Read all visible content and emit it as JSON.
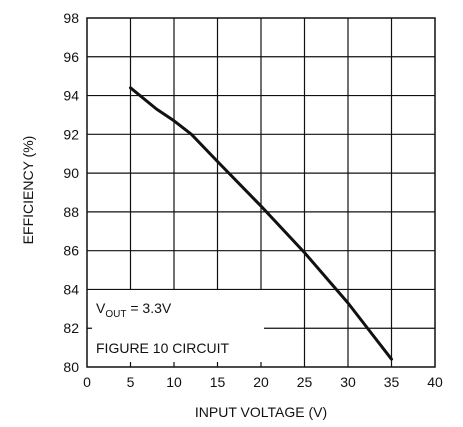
{
  "chart_data": {
    "type": "line",
    "xlabel": "INPUT VOLTAGE (V)",
    "ylabel": "EFFICIENCY (%)",
    "xlim": [
      0,
      40
    ],
    "ylim": [
      80,
      98
    ],
    "x_ticks": [
      "0",
      "5",
      "10",
      "15",
      "20",
      "25",
      "30",
      "35",
      "40"
    ],
    "y_ticks": [
      "80",
      "82",
      "84",
      "86",
      "88",
      "90",
      "92",
      "94",
      "96",
      "98"
    ],
    "grid": true,
    "series": [
      {
        "x": [
          5,
          8,
          10,
          12,
          15,
          20,
          25,
          30,
          35
        ],
        "y": [
          94.4,
          93.3,
          92.7,
          92.0,
          90.6,
          88.3,
          85.9,
          83.3,
          80.4
        ]
      }
    ],
    "annotations": {
      "vout_main": "V",
      "vout_sub": "OUT",
      "vout_rest": " = 3.3V",
      "circuit": "FIGURE 10 CIRCUIT"
    }
  }
}
